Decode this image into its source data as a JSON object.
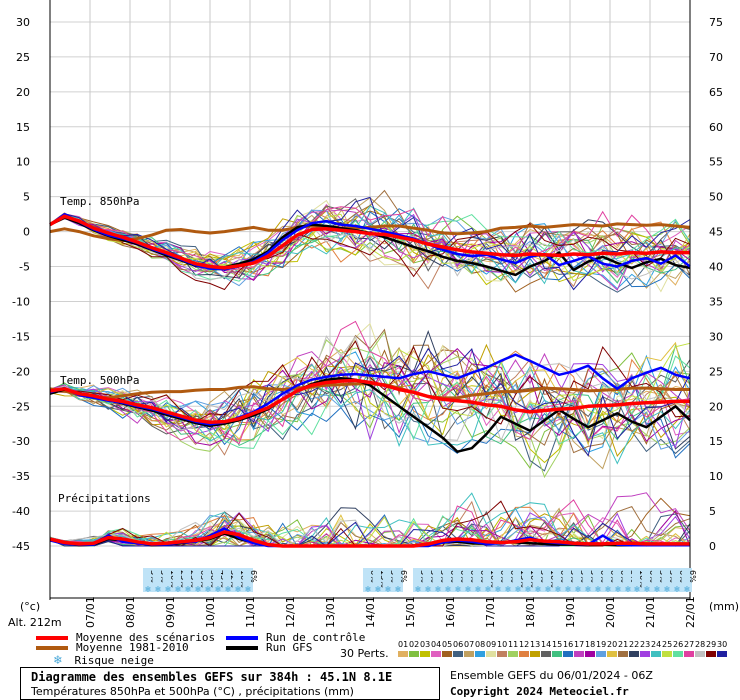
{
  "chart_data": {
    "type": "line",
    "left_axis": {
      "unit": "(°c)",
      "ticks": [
        30,
        25,
        20,
        15,
        10,
        5,
        0,
        -5,
        -10,
        -15,
        -20,
        -25,
        -30,
        -35,
        -40,
        -45
      ],
      "range": [
        -45,
        30
      ]
    },
    "right_axis": {
      "unit": "(mm)",
      "ticks": [
        75,
        70,
        65,
        60,
        55,
        50,
        45,
        40,
        35,
        30,
        25,
        20,
        15,
        10,
        5,
        0
      ],
      "range": [
        0,
        75
      ]
    },
    "x_dates": [
      "07/01",
      "08/01",
      "09/01",
      "10/01",
      "11/01",
      "12/01",
      "13/01",
      "14/01",
      "15/01",
      "16/01",
      "17/01",
      "18/01",
      "19/01",
      "20/01",
      "21/01",
      "22/01"
    ],
    "altitude": "Alt. 212m",
    "panels": [
      "Temp. 850hPa",
      "Temp. 500hPa",
      "Précipitations"
    ],
    "series_t850_mean": {
      "name": "Moyenne des scénarios",
      "color": "#ff0000",
      "values": [
        1,
        2.2,
        1.5,
        0.5,
        -0.2,
        -0.8,
        -1.5,
        -2.3,
        -3,
        -3.8,
        -4.6,
        -5,
        -5.2,
        -4.9,
        -4.5,
        -3.5,
        -2,
        -0.5,
        0.3,
        0.4,
        0.2,
        0,
        -0.3,
        -0.4,
        -0.8,
        -1.2,
        -1.8,
        -2.2,
        -2.6,
        -2.9,
        -3.1,
        -3.3,
        -3.4,
        -3.2,
        -3.3,
        -3.4,
        -3.2,
        -3.3,
        -3.1,
        -3.2,
        -3,
        -3.1,
        -2.9,
        -3,
        -3
      ]
    },
    "series_t850_control": {
      "name": "Run de contrôle",
      "color": "#0000ff",
      "values": [
        1,
        2.5,
        1.4,
        0.3,
        -0.5,
        -1,
        -1.6,
        -2.5,
        -3.2,
        -4,
        -4.8,
        -5.3,
        -5.4,
        -5,
        -4.3,
        -3,
        -1.2,
        0.2,
        1.2,
        1.5,
        1,
        0.8,
        0.4,
        0,
        -0.5,
        -1,
        -1.8,
        -2.6,
        -3.2,
        -3.5,
        -3.3,
        -4,
        -4.5,
        -3.6,
        -3.2,
        -4.8,
        -4.2,
        -3.5,
        -4.6,
        -5,
        -4.2,
        -3.8,
        -4.6,
        -3.4,
        -5
      ]
    },
    "series_t850_gfs": {
      "name": "Run GFS",
      "color": "#000000",
      "values": [
        1,
        2,
        1.2,
        0.2,
        -0.6,
        -1.2,
        -1.8,
        -2.6,
        -3.4,
        -4.1,
        -4.9,
        -5.2,
        -5.1,
        -4.6,
        -4,
        -2.8,
        -0.8,
        0.6,
        1,
        0.8,
        0.5,
        0.2,
        -0.2,
        -0.8,
        -1.5,
        -2.2,
        -2.8,
        -3.6,
        -4.2,
        -4.5,
        -5,
        -5.6,
        -6.2,
        -5,
        -4.2,
        -3,
        -5.5,
        -4.3,
        -3.6,
        -4.5,
        -5.2,
        -4.4,
        -3.9,
        -4.8,
        -5.2
      ]
    },
    "series_t850_clim": {
      "name": "Moyenne 1981-2010",
      "color": "#b05a10",
      "values": [
        0,
        0.4,
        0,
        -0.6,
        -1,
        -1.3,
        -1,
        -0.5,
        0.2,
        0.3,
        0,
        -0.2,
        0,
        0.3,
        0.6,
        0.2,
        0.2,
        0.6,
        0.8,
        0.7,
        0.5,
        0.5,
        0.6,
        0.8,
        0.8,
        0.5,
        0.2,
        -0.2,
        -0.3,
        -0.2,
        0,
        0.5,
        0.6,
        0.8,
        0.6,
        0.8,
        1,
        0.9,
        0.8,
        1.1,
        1,
        0.9,
        1,
        0.8,
        0.6
      ]
    },
    "series_t500_mean": {
      "name": "Moyenne des scénarios",
      "color": "#ff0000",
      "values": [
        -22.8,
        -22.5,
        -23.2,
        -23.5,
        -24,
        -24.3,
        -24.8,
        -25.2,
        -25.8,
        -26.4,
        -27,
        -27.3,
        -27.2,
        -26.8,
        -26,
        -25.2,
        -24,
        -22.8,
        -22,
        -21.6,
        -21.4,
        -21.3,
        -21.6,
        -22,
        -22.6,
        -23,
        -23.6,
        -24,
        -24.2,
        -24.4,
        -24.8,
        -25,
        -25.5,
        -25.8,
        -25.6,
        -25.4,
        -25.3,
        -25,
        -24.9,
        -24.8,
        -24.6,
        -24.5,
        -24.4,
        -24.3,
        -24.3
      ]
    },
    "series_t500_control": {
      "name": "Run de contrôle",
      "color": "#0000ff",
      "values": [
        -23,
        -22.4,
        -23.4,
        -23.8,
        -24.2,
        -24.5,
        -25,
        -25.4,
        -26,
        -26.6,
        -27.2,
        -27.6,
        -27.3,
        -26.6,
        -25.8,
        -24.6,
        -23.2,
        -22,
        -21.2,
        -20.8,
        -20.5,
        -20.4,
        -20.6,
        -20.8,
        -21,
        -20.4,
        -20,
        -20.5,
        -21,
        -20.2,
        -19.5,
        -18.5,
        -17.6,
        -18.5,
        -19.5,
        -20.5,
        -20,
        -19.2,
        -21,
        -22.5,
        -21,
        -20.2,
        -19.5,
        -20.5,
        -21
      ]
    },
    "series_t500_gfs": {
      "name": "Run GFS",
      "color": "#000000",
      "values": [
        -23.2,
        -22.6,
        -23.1,
        -23.6,
        -24.1,
        -24.6,
        -25.1,
        -25.6,
        -26.2,
        -26.8,
        -27.4,
        -27.8,
        -27.5,
        -27,
        -26.3,
        -25.4,
        -24,
        -22.8,
        -21.8,
        -21.2,
        -21,
        -21.2,
        -22,
        -23.5,
        -25,
        -26.5,
        -28,
        -29.5,
        -31.5,
        -31,
        -29,
        -26.5,
        -27.5,
        -28.5,
        -27,
        -25.5,
        -26.8,
        -28,
        -27,
        -26,
        -27.2,
        -28,
        -26.5,
        -25,
        -27
      ]
    },
    "series_t500_clim": {
      "name": "Moyenne 1981-2010",
      "color": "#b05a10",
      "values": [
        -22.5,
        -22.8,
        -23.4,
        -23.6,
        -23.8,
        -23.5,
        -23.2,
        -23,
        -22.9,
        -22.9,
        -22.7,
        -22.6,
        -22.6,
        -22.3,
        -22.2,
        -22.5,
        -22.6,
        -22.4,
        -22.2,
        -22,
        -21.9,
        -21.8,
        -21.8,
        -21.9,
        -22.4,
        -23,
        -23.6,
        -23.8,
        -23.8,
        -23.4,
        -23.2,
        -22.9,
        -22.9,
        -22.7,
        -22.4,
        -22.5,
        -22.6,
        -22.8,
        -22.7,
        -22.6,
        -22.4,
        -22.4,
        -22.5,
        -22.6,
        -22.6
      ]
    },
    "series_precip_mean": {
      "name": "Moyenne des scénarios",
      "color": "#ff0000",
      "values": [
        1,
        0.5,
        0.3,
        0.4,
        1.2,
        1,
        0.6,
        0.3,
        0.4,
        0.6,
        0.8,
        1.2,
        2,
        1.6,
        0.8,
        0.2,
        0,
        0,
        0,
        0,
        0,
        0,
        0,
        0,
        0,
        0,
        0.3,
        0.8,
        1,
        0.9,
        0.6,
        0.5,
        0.6,
        0.9,
        0.7,
        0.6,
        0.4,
        0.3,
        0.3,
        0.4,
        0.4,
        0.3,
        0.3,
        0.3,
        0.3
      ]
    },
    "series_precip_control": {
      "name": "Run de contrôle",
      "color": "#0000ff",
      "values": [
        0.8,
        0.3,
        0.2,
        0.2,
        1.5,
        0.6,
        0.4,
        0.2,
        0.2,
        0.5,
        0.6,
        1.5,
        2.5,
        1.2,
        0.4,
        0,
        0,
        0,
        0,
        0,
        0,
        0,
        0,
        0,
        0,
        0,
        0,
        0.5,
        0.8,
        0.6,
        0.3,
        0.4,
        0.8,
        1.2,
        0.6,
        0.4,
        0.3,
        0.2,
        1.5,
        0.2,
        0.1,
        0.1,
        0.1,
        0.1,
        0.1
      ]
    },
    "series_precip_gfs": {
      "name": "Run GFS",
      "color": "#000000",
      "values": [
        1,
        0.4,
        0.1,
        0.2,
        1,
        0.8,
        0.5,
        0.1,
        0.2,
        0.4,
        0.7,
        1,
        1.8,
        1,
        0.5,
        0.1,
        0,
        0,
        0,
        0,
        0,
        0,
        0,
        0,
        0,
        0,
        0.2,
        0.5,
        0.6,
        0.4,
        0.3,
        0.6,
        0.5,
        0.4,
        0.3,
        0.2,
        0.2,
        0.1,
        0.2,
        0.1,
        0.1,
        0.1,
        0.1,
        0.1,
        0.1
      ]
    },
    "snow_risk": {
      "labels_group1": [
        "3%",
        "3%",
        "10%",
        "23%",
        "23%",
        "65%",
        "58%",
        "45%",
        "32%",
        "10%",
        "6%"
      ],
      "labels_group2": [
        "6%",
        "13%",
        "3%",
        "6%"
      ],
      "labels_group3": [
        "3%",
        "3%",
        "3%",
        "6%",
        "6%",
        "6%",
        "6%",
        "10%",
        "6%",
        "6%",
        "13%",
        "10%",
        "3%",
        "10%",
        "6%",
        "3%",
        "3%",
        "3%",
        "6%",
        "6%",
        "6%",
        "3%"
      ],
      "labels_group4": [
        "10%",
        "6%",
        "3%",
        "3%",
        "6%",
        "6%"
      ]
    }
  },
  "legend": {
    "mean_label": "Moyenne des scénarios",
    "mean_color": "#ff0000",
    "clim_label": "Moyenne 1981-2010",
    "clim_color": "#b05a10",
    "control_label": "Run de contrôle",
    "control_color": "#0000ff",
    "gfs_label": "Run GFS",
    "gfs_color": "#000000",
    "snow_label": "Risque neige",
    "snow_icon": "snowflake-icon",
    "perts_label": "30 Perts.",
    "perts": [
      "01",
      "02",
      "03",
      "04",
      "05",
      "06",
      "07",
      "08",
      "09",
      "10",
      "11",
      "12",
      "13",
      "14",
      "15",
      "16",
      "17",
      "18",
      "19",
      "20",
      "21",
      "22",
      "23",
      "24",
      "25",
      "26",
      "27",
      "28",
      "29",
      "30"
    ],
    "perts_colors": [
      "#e0b060",
      "#80c040",
      "#c0c000",
      "#e060c0",
      "#a06020",
      "#406080",
      "#c0a060",
      "#30a0e0",
      "#e0e0a0",
      "#c08060",
      "#a0d060",
      "#e08040",
      "#c0a000",
      "#606060",
      "#40c080",
      "#2070c0",
      "#c040c0",
      "#a000a0",
      "#60a0e0",
      "#e0c040",
      "#a07040",
      "#304060",
      "#a040e0",
      "#40c0c0",
      "#c0e040",
      "#60e0a0",
      "#e040a0",
      "#c0c0c0",
      "#800000",
      "#2020a0"
    ]
  },
  "title": {
    "line1": "Diagramme des ensembles GEFS sur 384h : 45.1N 8.1E",
    "line2": "Températures 850hPa et 500hPa (°C) , précipitations (mm)"
  },
  "run_info": "Ensemble GEFS du 06/01/2024 - 06Z",
  "copyright": "Copyright 2024 Meteociel.fr"
}
